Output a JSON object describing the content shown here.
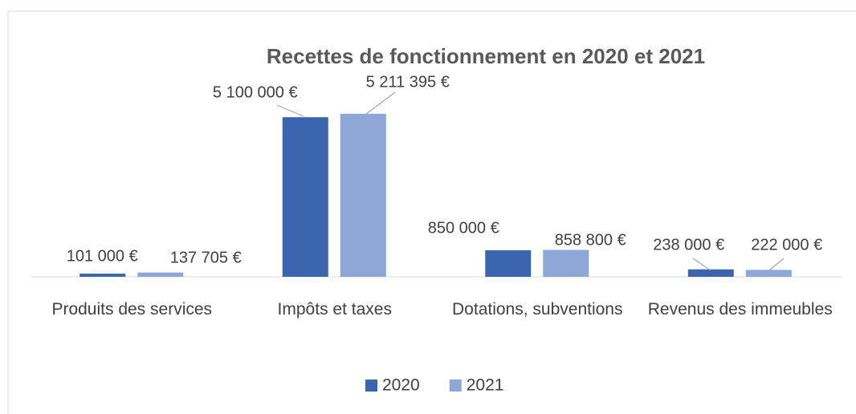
{
  "chart_data": {
    "type": "bar",
    "title": "Recettes de fonctionnement en 2020 et 2021",
    "categories": [
      "Produits des services",
      "Impôts et taxes",
      "Dotations, subventions",
      "Revenus des immeubles"
    ],
    "series": [
      {
        "name": "2020",
        "color": "#3a64ae",
        "values": [
          101000,
          5100000,
          850000,
          238000
        ],
        "value_labels": [
          "101 000 €",
          "5 100 000 €",
          "850 000 €",
          "238 000 €"
        ]
      },
      {
        "name": "2021",
        "color": "#8fa7d6",
        "values": [
          137705,
          5211395,
          858800,
          222000
        ],
        "value_labels": [
          "137 705 €",
          "5 211 395 €",
          "858 800 €",
          "222 000 €"
        ]
      }
    ],
    "ylim": [
      0,
      6000000
    ],
    "legend": "bottom"
  }
}
